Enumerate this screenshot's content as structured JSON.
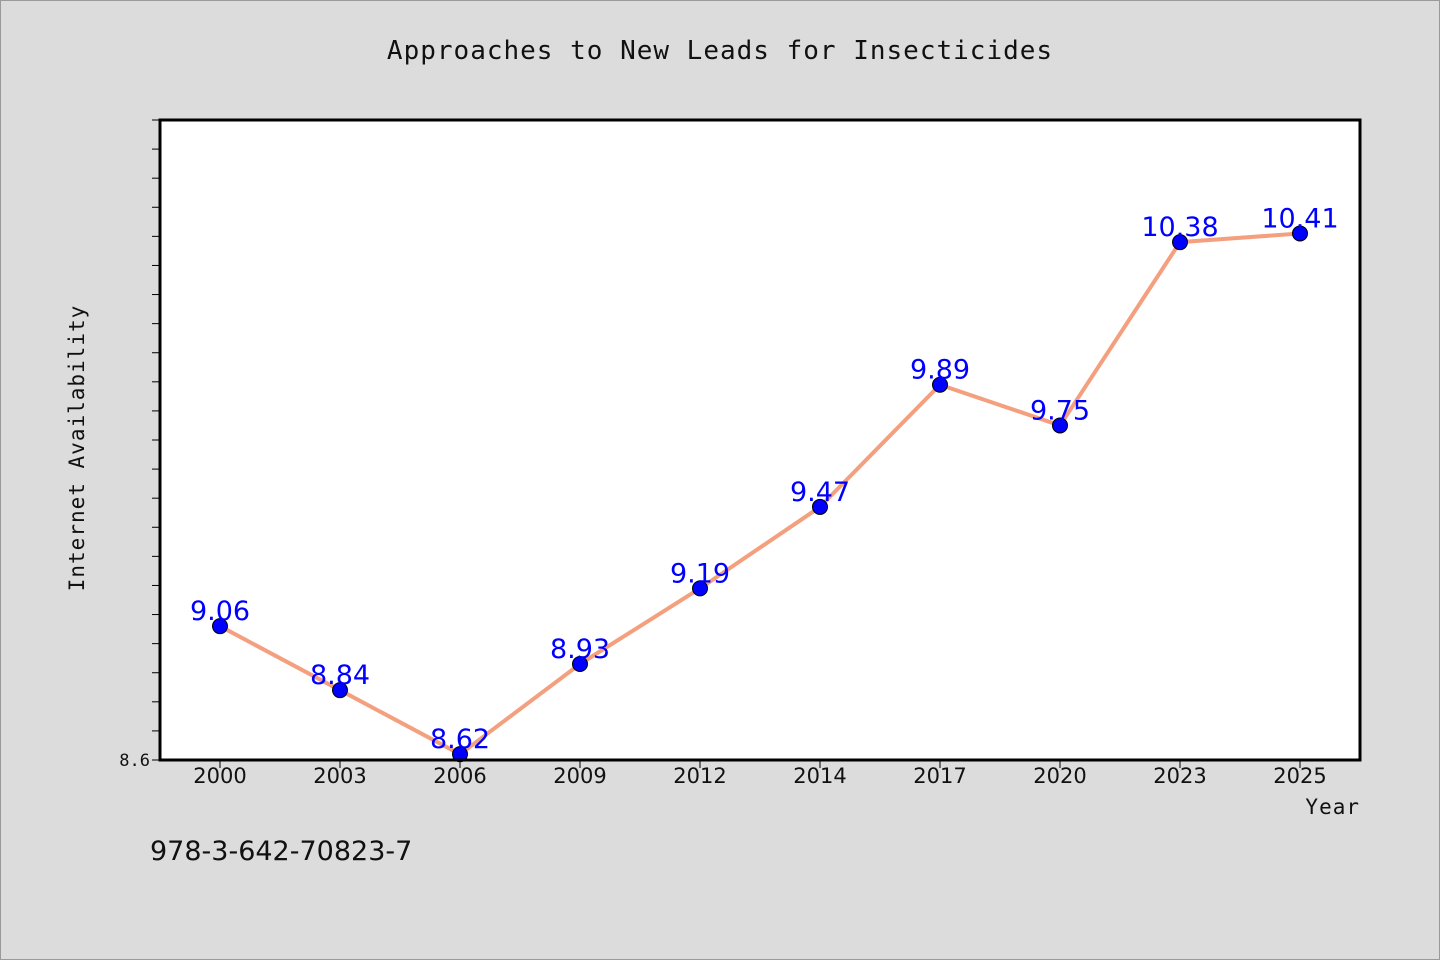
{
  "chart_data": {
    "type": "line",
    "title": "Approaches to New Leads for Insecticides",
    "xlabel": "Year",
    "ylabel": "Internet Availability",
    "categories": [
      "2000",
      "2003",
      "2006",
      "2009",
      "2012",
      "2014",
      "2017",
      "2020",
      "2023",
      "2025"
    ],
    "series": [
      {
        "values": [
          9.06,
          8.84,
          8.62,
          8.93,
          9.19,
          9.47,
          9.89,
          9.75,
          10.38,
          10.41
        ],
        "data_labels": [
          "9.06",
          "8.84",
          "8.62",
          "8.93",
          "9.19",
          "9.47",
          "9.89",
          "9.75",
          "10.38",
          "10.41"
        ]
      }
    ],
    "ylim": [
      8.6,
      10.8
    ],
    "y_tick_labels": [
      "8.6"
    ],
    "grid": false,
    "legend": "none",
    "colors": {
      "line": "#f4a07f",
      "marker": "#0000ff",
      "data_label": "#0000ff",
      "plot_background": "#ffffff",
      "page_background": "#dcdcdc"
    }
  },
  "footer": {
    "code": "978-3-642-70823-7"
  }
}
